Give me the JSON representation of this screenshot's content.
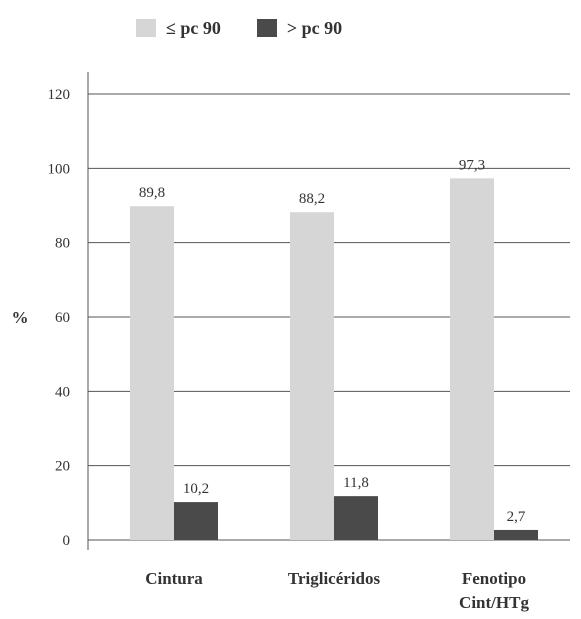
{
  "chart_data": {
    "type": "bar",
    "title": "",
    "xlabel": "",
    "ylabel": "%",
    "ylim": [
      0,
      120
    ],
    "yticks": [
      0,
      20,
      40,
      60,
      80,
      100,
      120
    ],
    "ytick_labels": [
      "0",
      "20",
      "40",
      "60",
      "80",
      "100",
      "120"
    ],
    "grid": true,
    "legend_position": "top",
    "categories": [
      "Cintura",
      "Triglicéridos",
      "Fenotipo\nCint/HTg"
    ],
    "series": [
      {
        "name": "≤ pc 90",
        "color": "#d6d6d6",
        "values": [
          89.8,
          88.2,
          97.3
        ],
        "labels": [
          "89,8",
          "88,2",
          "97,3"
        ]
      },
      {
        "name": "> pc 90",
        "color": "#4a4a4a",
        "values": [
          10.2,
          11.8,
          2.7
        ],
        "labels": [
          "10,2",
          "11,8",
          "2,7"
        ]
      }
    ]
  }
}
